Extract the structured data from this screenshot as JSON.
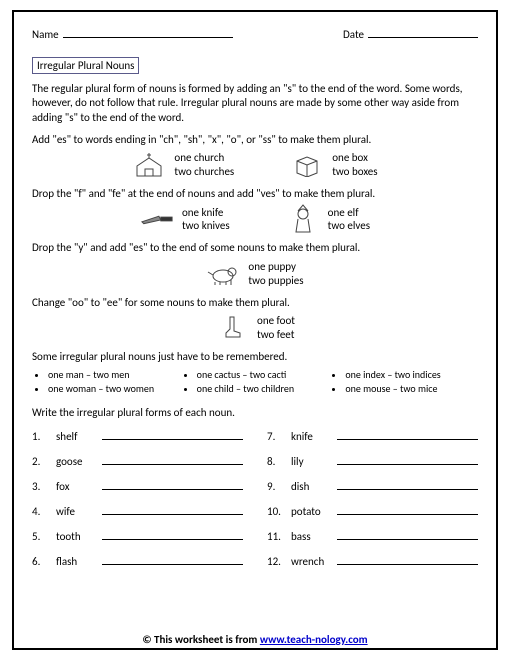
{
  "header": {
    "name_label": "Name",
    "date_label": "Date"
  },
  "title": "Irregular Plural Nouns",
  "intro": "The regular plural form of nouns is formed by adding an \"s\" to the end of the word. Some words, however, do not follow that rule. Irregular plural nouns are made by some other way aside from adding \"s\" to the end of the word.",
  "rules": {
    "es": "Add \"es\" to words ending in \"ch\", \"sh\", \"x\", \"o\", or \"ss\" to make them plural.",
    "ves": "Drop the \"f\" and \"fe\" at the end of nouns and add \"ves\" to make them plural.",
    "ies": "Drop the \"y\" and add \"es\" to the end of some nouns to make them plural.",
    "ee": "Change \"oo\" to \"ee\" for some nouns to make them plural.",
    "remember": "Some irregular plural nouns just have to be remembered."
  },
  "examples": {
    "church": {
      "s": "one church",
      "p": "two churches"
    },
    "box": {
      "s": "one box",
      "p": "two boxes"
    },
    "knife": {
      "s": "one knife",
      "p": "two knives"
    },
    "elf": {
      "s": "one elf",
      "p": "two elves"
    },
    "puppy": {
      "s": "one puppy",
      "p": "two puppies"
    },
    "foot": {
      "s": "one foot",
      "p": "two feet"
    }
  },
  "remember_list": {
    "col1": [
      "one man – two men",
      "one woman – two women"
    ],
    "col2": [
      "one cactus – two cacti",
      "one child – two children"
    ],
    "col3": [
      "one index – two indices",
      "one mouse – two mice"
    ]
  },
  "exercise": {
    "intro": "Write the irregular plural forms of each noun.",
    "left": [
      {
        "n": "1.",
        "w": "shelf"
      },
      {
        "n": "2.",
        "w": "goose"
      },
      {
        "n": "3.",
        "w": "fox"
      },
      {
        "n": "4.",
        "w": "wife"
      },
      {
        "n": "5.",
        "w": "tooth"
      },
      {
        "n": "6.",
        "w": "flash"
      }
    ],
    "right": [
      {
        "n": "7.",
        "w": "knife"
      },
      {
        "n": "8.",
        "w": "lily"
      },
      {
        "n": "9.",
        "w": "dish"
      },
      {
        "n": "10.",
        "w": "potato"
      },
      {
        "n": "11.",
        "w": "bass"
      },
      {
        "n": "12.",
        "w": "wrench"
      }
    ]
  },
  "footer": {
    "prefix": "© This worksheet is from ",
    "link": "www.teach-nology.com"
  }
}
